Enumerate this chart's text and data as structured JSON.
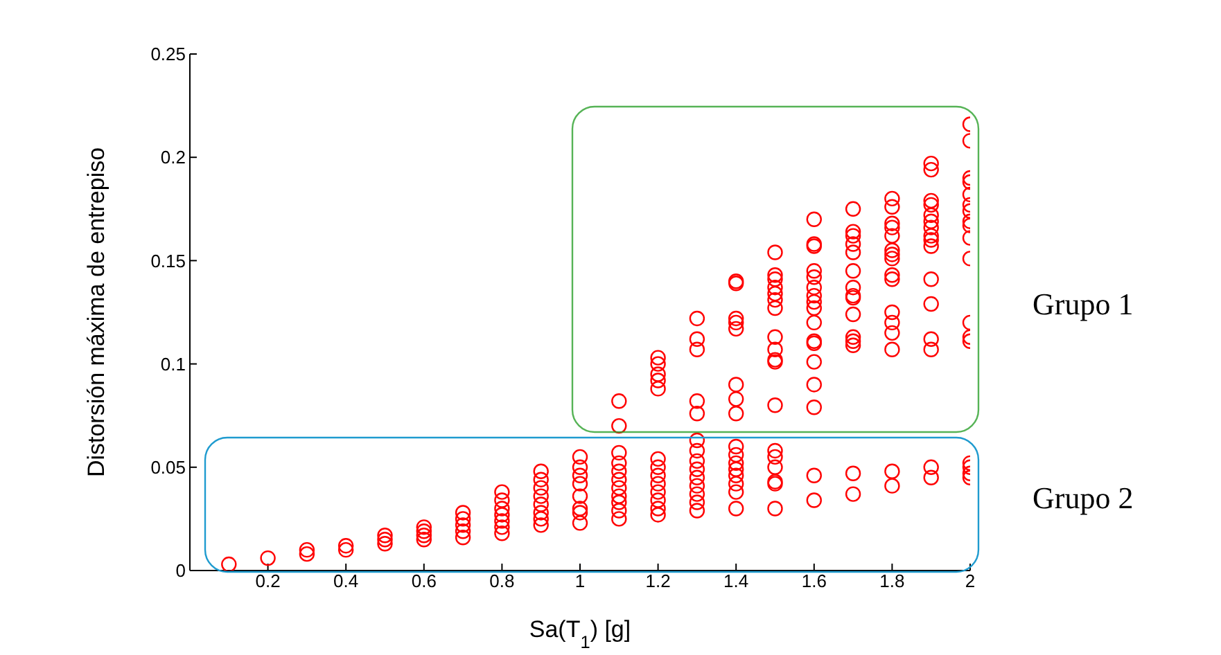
{
  "chart_data": {
    "type": "scatter",
    "xlabel": "Sa(T$_{1}$) [g]",
    "ylabel": "Distorsión máxima de entrepiso",
    "marker": "circle",
    "xlim": [
      0,
      2
    ],
    "xticks": [
      0.2,
      0.4,
      0.6,
      0.8,
      1,
      1.2,
      1.4,
      1.6,
      1.8,
      2
    ],
    "ylim": [
      0,
      0.25
    ],
    "yticks": [
      0,
      0.05,
      0.1,
      0.15,
      0.2,
      0.25
    ],
    "annotations": [
      "Grupo 1",
      "Grupo 2"
    ],
    "series": [
      {
        "color": "#ff0000",
        "x": [
          0.1,
          0.2,
          0.3,
          0.3,
          0.4,
          0.4,
          0.5,
          0.5,
          0.5,
          0.6,
          0.6,
          0.6,
          0.6,
          0.7,
          0.7,
          0.7,
          0.7,
          0.7,
          0.8,
          0.8,
          0.8,
          0.8,
          0.8,
          0.8,
          0.8,
          0.9,
          0.9,
          0.9,
          0.9,
          0.9,
          0.9,
          0.9,
          0.9,
          1,
          1,
          1,
          1,
          1,
          1,
          1,
          1,
          1.1,
          1.1,
          1.1,
          1.1,
          1.1,
          1.1,
          1.1,
          1.1,
          1.1,
          1.1,
          1.1,
          1.2,
          1.2,
          1.2,
          1.2,
          1.2,
          1.2,
          1.2,
          1.2,
          1.2,
          1.2,
          1.2,
          1.2,
          1.2,
          1.3,
          1.3,
          1.3,
          1.3,
          1.3,
          1.3,
          1.3,
          1.3,
          1.3,
          1.3,
          1.3,
          1.3,
          1.3,
          1.3,
          1.4,
          1.4,
          1.4,
          1.4,
          1.4,
          1.4,
          1.4,
          1.4,
          1.4,
          1.4,
          1.4,
          1.4,
          1.4,
          1.4,
          1.4,
          1.4,
          1.5,
          1.5,
          1.5,
          1.5,
          1.5,
          1.5,
          1.5,
          1.5,
          1.5,
          1.5,
          1.5,
          1.5,
          1.5,
          1.5,
          1.5,
          1.5,
          1.5,
          1.5,
          1.6,
          1.6,
          1.6,
          1.6,
          1.6,
          1.6,
          1.6,
          1.6,
          1.6,
          1.6,
          1.6,
          1.6,
          1.6,
          1.6,
          1.6,
          1.6,
          1.6,
          1.7,
          1.7,
          1.7,
          1.7,
          1.7,
          1.7,
          1.7,
          1.7,
          1.7,
          1.7,
          1.7,
          1.7,
          1.7,
          1.7,
          1.7,
          1.8,
          1.8,
          1.8,
          1.8,
          1.8,
          1.8,
          1.8,
          1.8,
          1.8,
          1.8,
          1.8,
          1.8,
          1.8,
          1.8,
          1.8,
          1.8,
          1.9,
          1.9,
          1.9,
          1.9,
          1.9,
          1.9,
          1.9,
          1.9,
          1.9,
          1.9,
          1.9,
          1.9,
          1.9,
          1.9,
          1.9,
          1.9,
          2,
          2,
          2,
          2,
          2,
          2,
          2,
          2,
          2,
          2,
          2,
          2,
          2,
          2,
          2,
          2,
          2,
          2
        ],
        "values": [
          0.003,
          0.006,
          0.008,
          0.01,
          0.01,
          0.012,
          0.013,
          0.015,
          0.017,
          0.015,
          0.017,
          0.019,
          0.021,
          0.016,
          0.019,
          0.022,
          0.025,
          0.028,
          0.018,
          0.021,
          0.024,
          0.027,
          0.03,
          0.034,
          0.038,
          0.022,
          0.025,
          0.028,
          0.032,
          0.036,
          0.04,
          0.044,
          0.048,
          0.055,
          0.05,
          0.046,
          0.042,
          0.036,
          0.03,
          0.028,
          0.023,
          0.057,
          0.052,
          0.048,
          0.044,
          0.04,
          0.036,
          0.033,
          0.029,
          0.025,
          0.082,
          0.07,
          0.054,
          0.05,
          0.046,
          0.042,
          0.038,
          0.034,
          0.03,
          0.027,
          0.103,
          0.1,
          0.095,
          0.092,
          0.088,
          0.063,
          0.058,
          0.053,
          0.049,
          0.045,
          0.041,
          0.037,
          0.033,
          0.029,
          0.122,
          0.112,
          0.107,
          0.082,
          0.076,
          0.06,
          0.056,
          0.052,
          0.049,
          0.046,
          0.042,
          0.038,
          0.03,
          0.14,
          0.139,
          0.122,
          0.12,
          0.117,
          0.09,
          0.083,
          0.076,
          0.058,
          0.055,
          0.05,
          0.043,
          0.042,
          0.03,
          0.154,
          0.143,
          0.141,
          0.137,
          0.134,
          0.131,
          0.127,
          0.113,
          0.107,
          0.102,
          0.101,
          0.08,
          0.046,
          0.034,
          0.17,
          0.158,
          0.157,
          0.145,
          0.142,
          0.137,
          0.133,
          0.13,
          0.127,
          0.12,
          0.111,
          0.11,
          0.101,
          0.09,
          0.079,
          0.047,
          0.037,
          0.175,
          0.164,
          0.162,
          0.158,
          0.154,
          0.145,
          0.137,
          0.133,
          0.132,
          0.124,
          0.113,
          0.111,
          0.109,
          0.048,
          0.041,
          0.18,
          0.176,
          0.168,
          0.166,
          0.162,
          0.155,
          0.153,
          0.151,
          0.143,
          0.141,
          0.125,
          0.12,
          0.115,
          0.107,
          0.05,
          0.045,
          0.197,
          0.194,
          0.179,
          0.177,
          0.172,
          0.169,
          0.166,
          0.162,
          0.16,
          0.157,
          0.141,
          0.129,
          0.112,
          0.107,
          0.052,
          0.05,
          0.047,
          0.045,
          0.216,
          0.208,
          0.19,
          0.188,
          0.182,
          0.177,
          0.174,
          0.169,
          0.167,
          0.161,
          0.151,
          0.12,
          0.113,
          0.111
        ]
      }
    ]
  }
}
